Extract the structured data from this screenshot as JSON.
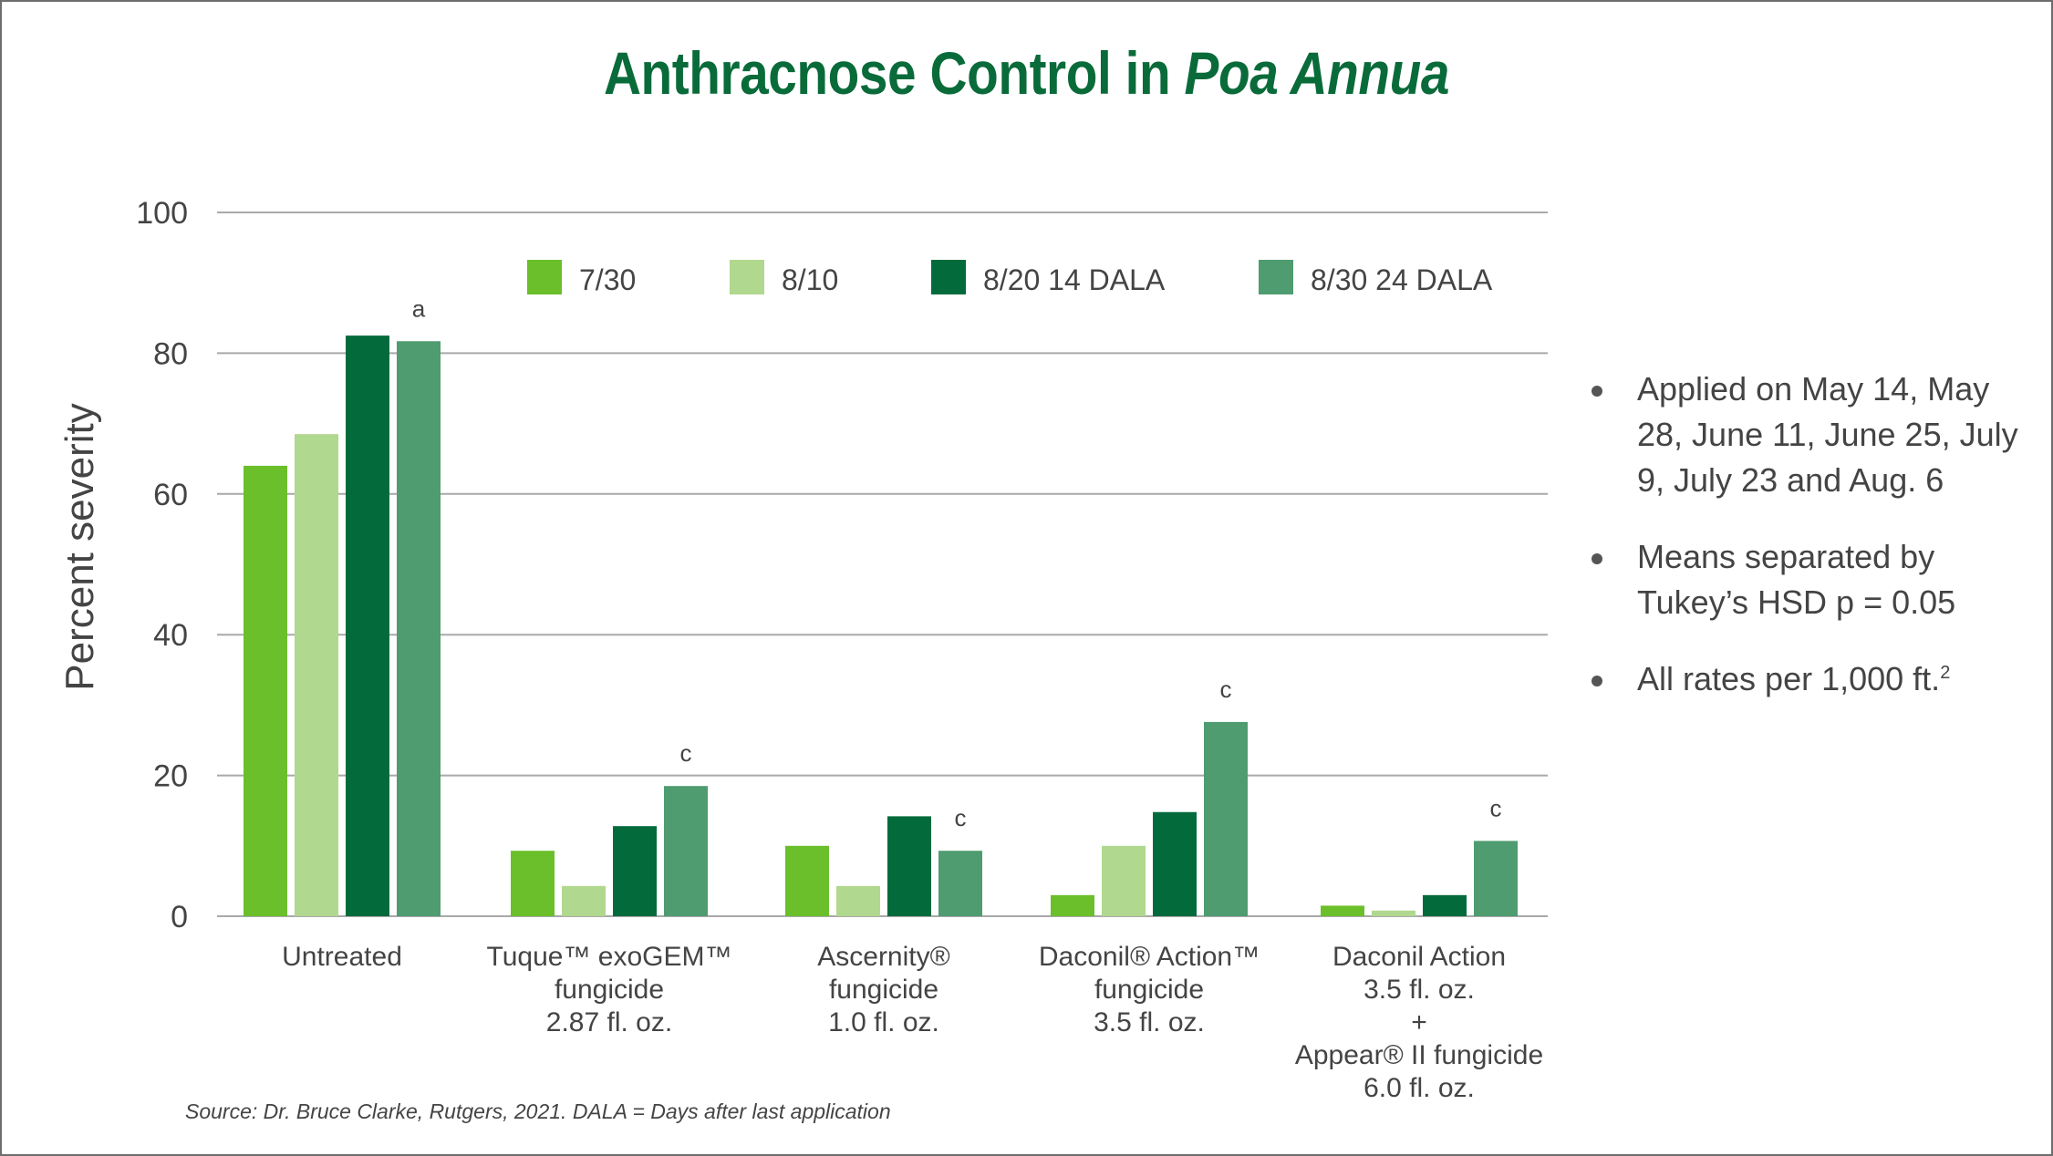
{
  "title": {
    "main": "Anthracnose Control in ",
    "italic": "Poa Annua"
  },
  "chart_data": {
    "type": "bar",
    "title": "Anthracnose Control in Poa Annua",
    "ylabel": "Percent severity",
    "xlabel": "",
    "ylim": [
      0,
      100
    ],
    "yticks": [
      0,
      20,
      40,
      60,
      80,
      100
    ],
    "grid": true,
    "legend_position": "top",
    "categories": [
      [
        "Untreated"
      ],
      [
        "Tuque™ exoGEM™",
        "fungicide",
        "2.87 fl. oz."
      ],
      [
        "Ascernity®",
        "fungicide",
        "1.0 fl. oz."
      ],
      [
        "Daconil® Action™",
        "fungicide",
        "3.5 fl. oz."
      ],
      [
        "Daconil Action",
        "3.5 fl. oz.",
        "+",
        "Appear® II fungicide",
        "6.0 fl. oz."
      ]
    ],
    "series": [
      {
        "name": "7/30",
        "color": "#6abf2a",
        "values": [
          64,
          9.3,
          10,
          3,
          1.5
        ]
      },
      {
        "name": "8/10",
        "color": "#b0d88e",
        "values": [
          68.5,
          4.3,
          4.3,
          10,
          0.8
        ]
      },
      {
        "name": "8/20 14 DALA",
        "color": "#036b3b",
        "values": [
          82.5,
          12.8,
          14.2,
          14.8,
          3
        ]
      },
      {
        "name": "8/30 24 DALA",
        "color": "#4e9c70",
        "values": [
          81.7,
          18.5,
          9.3,
          27.6,
          10.7
        ]
      }
    ],
    "significance_letters": [
      "a",
      "c",
      "c",
      "c",
      "c"
    ]
  },
  "notes": [
    "Applied on May 14, May 28, June 11, June 25, July 9, July 23 and Aug. 6",
    " Means separated by Tukey’s HSD p = 0.05",
    "All rates per 1,000 ft."
  ],
  "notes_superscript": "2",
  "source": "Source: Dr. Bruce Clarke, Rutgers, 2021. DALA = Days after last application"
}
